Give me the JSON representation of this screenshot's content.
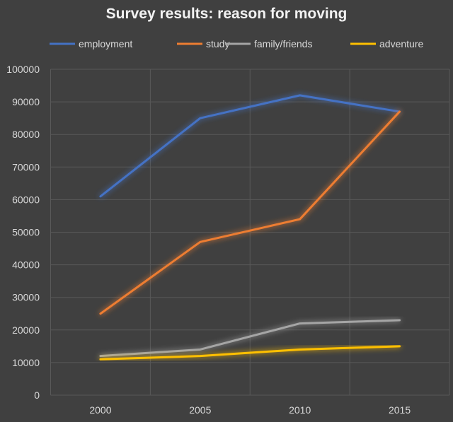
{
  "chart_data": {
    "type": "line",
    "title": "Survey results: reason for moving",
    "categories": [
      "2000",
      "2005",
      "2010",
      "2015"
    ],
    "ylim": [
      0,
      100000
    ],
    "yticks": [
      "0",
      "10000",
      "20000",
      "30000",
      "40000",
      "50000",
      "60000",
      "70000",
      "80000",
      "90000",
      "100000"
    ],
    "grid": true,
    "legend_position": "top",
    "series": [
      {
        "name": "employment",
        "color": "#4472c4",
        "values": [
          61000,
          85000,
          92000,
          87000
        ]
      },
      {
        "name": "study",
        "color": "#ed7d31",
        "values": [
          25000,
          47000,
          54000,
          87000
        ]
      },
      {
        "name": "family/friends",
        "color": "#a5a5a5",
        "values": [
          12000,
          14000,
          22000,
          23000
        ]
      },
      {
        "name": "adventure",
        "color": "#ffc000",
        "values": [
          11000,
          12000,
          14000,
          15000
        ]
      }
    ]
  }
}
